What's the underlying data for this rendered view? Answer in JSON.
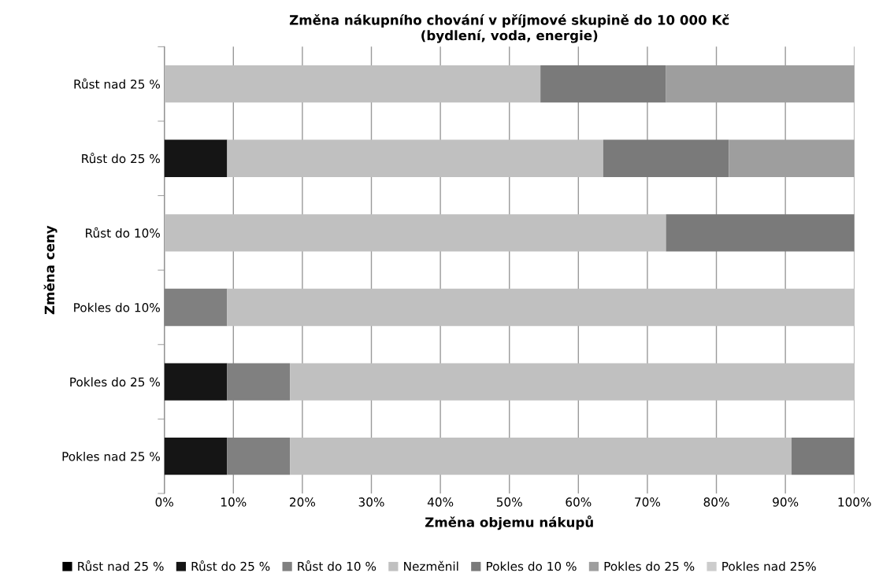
{
  "chart_data": {
    "type": "bar",
    "orientation": "horizontal",
    "stacked": true,
    "title": "Změna nákupního chování v příjmové skupině do 10 000 Kč\n(bydlení, voda, energie)",
    "xlabel": "Změna objemu nákupů",
    "ylabel": "Změna ceny",
    "categories": [
      "Růst nad 25 %",
      "Růst do 25 %",
      "Růst do 10%",
      "Pokles do 10%",
      "Pokles do 25 %",
      "Pokles nad 25 %"
    ],
    "series": [
      {
        "name": "Růst nad 25 %",
        "color": "#000000",
        "values": [
          0,
          0,
          0,
          0,
          0,
          0
        ]
      },
      {
        "name": "Růst do 25 %",
        "color": "#151515",
        "values": [
          0,
          9.1,
          0,
          0,
          9.1,
          9.1
        ]
      },
      {
        "name": "Růst do 10 %",
        "color": "#808080",
        "values": [
          0,
          0,
          0,
          9.1,
          9.1,
          9.1
        ]
      },
      {
        "name": "Nezměnil",
        "color": "#c0c0c0",
        "values": [
          54.5,
          54.5,
          72.7,
          90.9,
          81.8,
          72.7
        ]
      },
      {
        "name": "Pokles do 10 %",
        "color": "#7a7a7a",
        "values": [
          18.2,
          18.2,
          27.3,
          0,
          0,
          9.1
        ]
      },
      {
        "name": "Pokles do 25 %",
        "color": "#9e9e9e",
        "values": [
          27.3,
          18.2,
          0,
          0,
          0,
          0
        ]
      },
      {
        "name": "Pokles nad 25%",
        "color": "#cccccc",
        "values": [
          0,
          0,
          0,
          0,
          0,
          0
        ]
      }
    ],
    "xlim": [
      0,
      100
    ],
    "xticks": [
      {
        "value": 0,
        "label": "0%"
      },
      {
        "value": 10,
        "label": "10%"
      },
      {
        "value": 20,
        "label": "20%"
      },
      {
        "value": 30,
        "label": "30%"
      },
      {
        "value": 40,
        "label": "40%"
      },
      {
        "value": 50,
        "label": "50%"
      },
      {
        "value": 60,
        "label": "60%"
      },
      {
        "value": 70,
        "label": "70%"
      },
      {
        "value": 80,
        "label": "80%"
      },
      {
        "value": 90,
        "label": "90%"
      },
      {
        "value": 100,
        "label": "100%"
      }
    ],
    "grid": "x",
    "legend": "bottom"
  }
}
